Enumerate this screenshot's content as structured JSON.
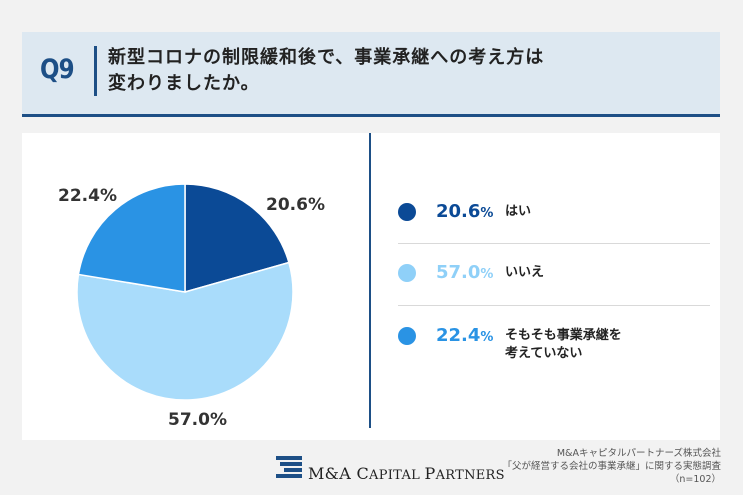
{
  "header": {
    "qnum": "Q9",
    "question_line1": "新型コロナの制限緩和後で、事業承継への考え方は",
    "question_line2": "変わりましたか。"
  },
  "chart_data": {
    "type": "pie",
    "slices": [
      {
        "label": "はい",
        "value": 20.6,
        "display": "20.6%",
        "color": "#0b4a96"
      },
      {
        "label": "いいえ",
        "value": 57.0,
        "display": "57.0%",
        "color": "#a9dcfb"
      },
      {
        "label": "そもそも事業承継を考えていない",
        "value": 22.4,
        "display": "22.4%",
        "color": "#2a93e4"
      }
    ]
  },
  "legend": [
    {
      "value": "20.6",
      "unit": "%",
      "label_line1": "はい",
      "label_line2": "",
      "color": "#0b4a96"
    },
    {
      "value": "57.0",
      "unit": "%",
      "label_line1": "いいえ",
      "label_line2": "",
      "color": "#8fd0f8"
    },
    {
      "value": "22.4",
      "unit": "%",
      "label_line1": "そもそも事業承継を",
      "label_line2": "考えていない",
      "color": "#2a93e4"
    }
  ],
  "footer": {
    "logo_prefix": "M&A C",
    "logo_word1": "APITAL ",
    "logo_p": "P",
    "logo_word2": "ARTNERS",
    "source_line1": "M&Aキャピタルパートナーズ株式会社",
    "source_line2": "「父が経営する会社の事業承継」に関する実態調査",
    "source_line3": "（n=102）"
  }
}
